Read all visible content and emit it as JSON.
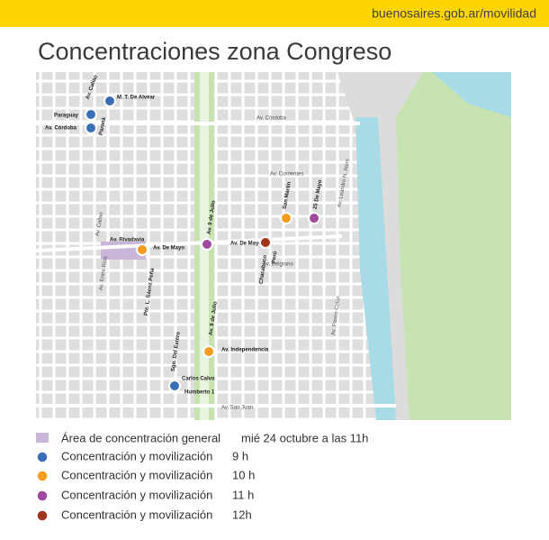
{
  "header": {
    "url": "buenosaires.gob.ar/movilidad"
  },
  "title": "Concentraciones zona Congreso",
  "map": {
    "labels": [
      "Av. Callao",
      "M. T. De Alvear",
      "Paraguay",
      "Av. Córdoba",
      "Paraná",
      "Av. Córdoba",
      "Av. Corrientes",
      "San Martín",
      "25 De Mayo",
      "Av. Leandro N. Alem",
      "Av. Callao",
      "Av. Rivadavia",
      "Av. De Mayo",
      "Av. 9 de Julio",
      "Av. De Mayo",
      "Av. Entre Ríos",
      "Pte. L. Sáenz Peña",
      "Chacabuco",
      "Perú",
      "Av. Belgrano",
      "Av. 9 de Julio",
      "Sgo. Del Estero",
      "Av. Independencia",
      "Carlos Calvo",
      "Humberto 1",
      "Av. San Juan",
      "Av. Paseo Colón"
    ]
  },
  "legend": {
    "area": {
      "label": "Área de concentración general",
      "date": "mié 24 octubre a las 11h"
    },
    "items": [
      {
        "label": "Concentración y movilización",
        "time": "9 h"
      },
      {
        "label": "Concentración y movilización",
        "time": "10 h"
      },
      {
        "label": "Concentración y movilización",
        "time": "11 h"
      },
      {
        "label": "Concentración y movilización",
        "time": "12h"
      }
    ]
  }
}
